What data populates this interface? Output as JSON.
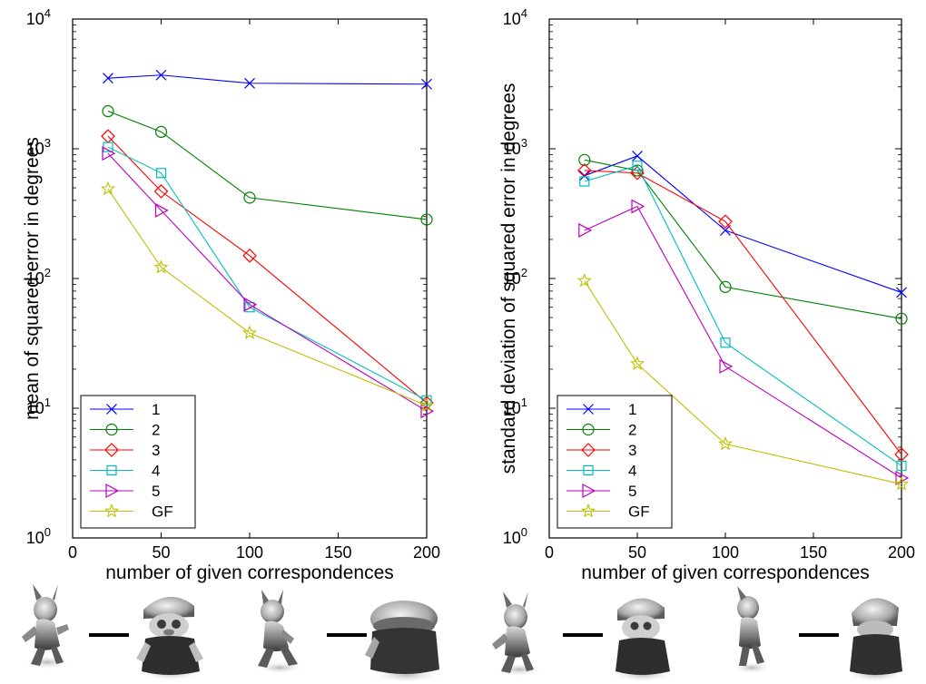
{
  "chart_data": [
    {
      "type": "line",
      "xlabel": "number of given correspondences",
      "ylabel": "mean of squared error in degrees",
      "yscale": "log",
      "xlim": [
        0,
        200
      ],
      "ylim": [
        1,
        10000
      ],
      "x": [
        20,
        50,
        100,
        200
      ],
      "xticks": [
        "0",
        "50",
        "100",
        "150",
        "200"
      ],
      "yticks": [
        {
          "base": "10",
          "exp": "0"
        },
        {
          "base": "10",
          "exp": "1"
        },
        {
          "base": "10",
          "exp": "2"
        },
        {
          "base": "10",
          "exp": "3"
        },
        {
          "base": "10",
          "exp": "4"
        }
      ],
      "legend_position": "bottom-left",
      "grid": false,
      "series": [
        {
          "name": "1",
          "color": "#0000ff",
          "marker": "x",
          "values": [
            3500,
            3700,
            3200,
            3150
          ]
        },
        {
          "name": "2",
          "color": "#008000",
          "marker": "circle",
          "values": [
            1950,
            1350,
            420,
            285
          ]
        },
        {
          "name": "3",
          "color": "#ff0000",
          "marker": "diamond",
          "values": [
            1250,
            470,
            150,
            11
          ]
        },
        {
          "name": "4",
          "color": "#00bfbf",
          "marker": "square",
          "values": [
            1030,
            650,
            60,
            11.5
          ]
        },
        {
          "name": "5",
          "color": "#bf00bf",
          "marker": "triangle-right",
          "values": [
            920,
            335,
            63,
            9.5
          ]
        },
        {
          "name": "GF",
          "color": "#bfbf00",
          "marker": "star",
          "values": [
            490,
            122,
            38,
            10.5
          ]
        }
      ]
    },
    {
      "type": "line",
      "xlabel": "number of given correspondences",
      "ylabel": "standard deviation of squared error in degrees",
      "yscale": "log",
      "xlim": [
        0,
        200
      ],
      "ylim": [
        1,
        10000
      ],
      "x": [
        20,
        50,
        100,
        200
      ],
      "xticks": [
        "0",
        "50",
        "100",
        "150",
        "200"
      ],
      "yticks": [
        {
          "base": "10",
          "exp": "0"
        },
        {
          "base": "10",
          "exp": "1"
        },
        {
          "base": "10",
          "exp": "2"
        },
        {
          "base": "10",
          "exp": "3"
        },
        {
          "base": "10",
          "exp": "4"
        }
      ],
      "legend_position": "bottom-left",
      "grid": false,
      "series": [
        {
          "name": "1",
          "color": "#0000ff",
          "marker": "x",
          "values": [
            620,
            880,
            235,
            78
          ]
        },
        {
          "name": "2",
          "color": "#008000",
          "marker": "circle",
          "values": [
            820,
            680,
            86,
            49
          ]
        },
        {
          "name": "3",
          "color": "#ff0000",
          "marker": "diamond",
          "values": [
            680,
            650,
            275,
            4.4
          ]
        },
        {
          "name": "4",
          "color": "#00bfbf",
          "marker": "square",
          "values": [
            560,
            740,
            32,
            3.6
          ]
        },
        {
          "name": "5",
          "color": "#bf00bf",
          "marker": "triangle-right",
          "values": [
            235,
            360,
            21,
            2.9
          ]
        },
        {
          "name": "GF",
          "color": "#bfbf00",
          "marker": "star",
          "values": [
            96,
            22,
            5.3,
            2.6
          ]
        }
      ]
    }
  ],
  "thumbnails": [
    {
      "left": "cat-figure-standing",
      "right": "bear-figure-with-cap"
    },
    {
      "left": "cat-figure-walking",
      "right": "bear-figure-back-view"
    },
    {
      "left": "cat-figure-standing",
      "right": "bear-figure-with-cap"
    },
    {
      "left": "cat-figure-side-view",
      "right": "bear-figure-with-cap-rear"
    }
  ]
}
